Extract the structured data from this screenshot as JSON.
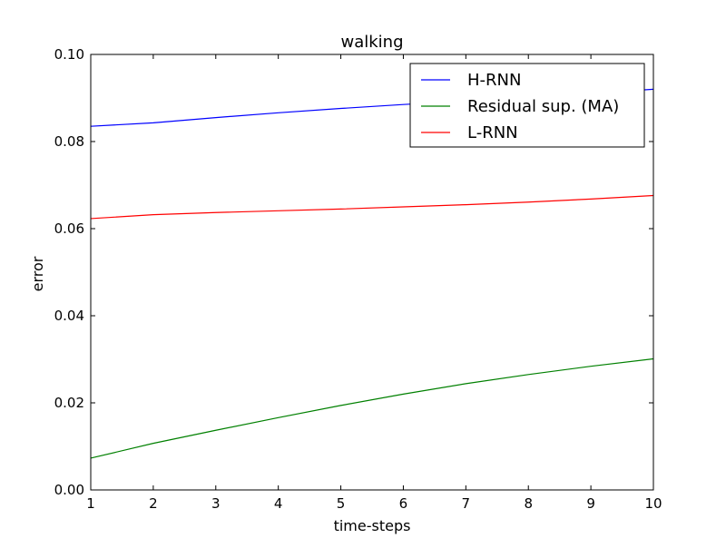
{
  "chart_data": {
    "type": "line",
    "title": "walking",
    "xlabel": "time-steps",
    "ylabel": "error",
    "x": [
      1,
      2,
      3,
      4,
      5,
      6,
      7,
      8,
      9,
      10
    ],
    "xlim": [
      1,
      10
    ],
    "ylim": [
      0.0,
      0.1
    ],
    "xticks": [
      "1",
      "2",
      "3",
      "4",
      "5",
      "6",
      "7",
      "8",
      "9",
      "10"
    ],
    "yticks": [
      "0.00",
      "0.02",
      "0.04",
      "0.06",
      "0.08",
      "0.10"
    ],
    "ytick_values": [
      0.0,
      0.02,
      0.04,
      0.06,
      0.08,
      0.1
    ],
    "grid": false,
    "legend_position": "top-right",
    "series": [
      {
        "name": "H-RNN",
        "color": "#0000ff",
        "values": [
          0.0835,
          0.0843,
          0.0855,
          0.0866,
          0.0876,
          0.0885,
          0.0893,
          0.0902,
          0.0911,
          0.092
        ]
      },
      {
        "name": "Residual sup. (MA)",
        "color": "#008000",
        "values": [
          0.0073,
          0.0107,
          0.0137,
          0.0166,
          0.0194,
          0.022,
          0.0244,
          0.0265,
          0.0284,
          0.0301
        ]
      },
      {
        "name": "L-RNN",
        "color": "#ff0000",
        "values": [
          0.0623,
          0.0632,
          0.0637,
          0.0641,
          0.0645,
          0.065,
          0.0655,
          0.0661,
          0.0668,
          0.0676
        ]
      }
    ]
  }
}
